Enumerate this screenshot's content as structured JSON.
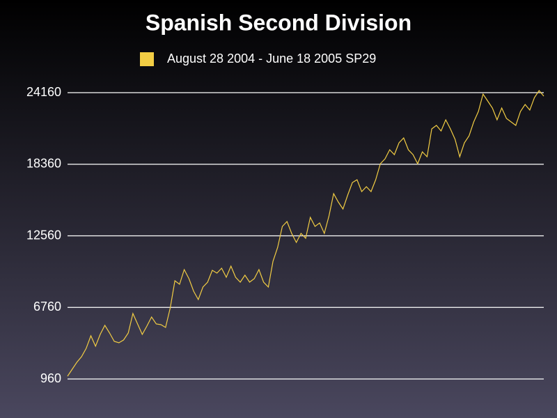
{
  "chart_data": {
    "type": "line",
    "title": "Spanish Second Division",
    "series": [
      {
        "name": "August 28 2004  - June 18 2005 SP29",
        "color": "#f2cd44",
        "values": [
          1186,
          1750,
          2315,
          2766,
          3444,
          4460,
          3613,
          4573,
          5307,
          4686,
          4008,
          3896,
          4121,
          4686,
          6266,
          5419,
          4573,
          5250,
          5984,
          5419,
          5363,
          5137,
          6718,
          8920,
          8637,
          9823,
          9089,
          8073,
          7395,
          8411,
          8807,
          9767,
          9541,
          9936,
          9202,
          10105,
          9202,
          8807,
          9371,
          8807,
          9089,
          9823,
          8807,
          8411,
          10500,
          11629,
          13323,
          13718,
          12758,
          12025,
          12758,
          12363,
          14056,
          13323,
          13605,
          12758,
          14169,
          15975,
          15298,
          14733,
          15862,
          16878,
          17104,
          16144,
          16539,
          16144,
          17104,
          18402,
          18798,
          19532,
          19137,
          20096,
          20491,
          19532,
          19137,
          18402,
          19362,
          18967,
          21225,
          21507,
          21055,
          21959,
          21225,
          20378,
          18967,
          20096,
          20661,
          21790,
          22637,
          24048,
          23483,
          22919,
          21959,
          22919,
          22072,
          21790,
          21507,
          22637,
          23201,
          22750,
          23766,
          24330,
          23878
        ]
      }
    ],
    "ylim": [
      960,
      24160
    ],
    "yticks": [
      960,
      6760,
      12560,
      18360,
      24160
    ],
    "grid": true
  }
}
